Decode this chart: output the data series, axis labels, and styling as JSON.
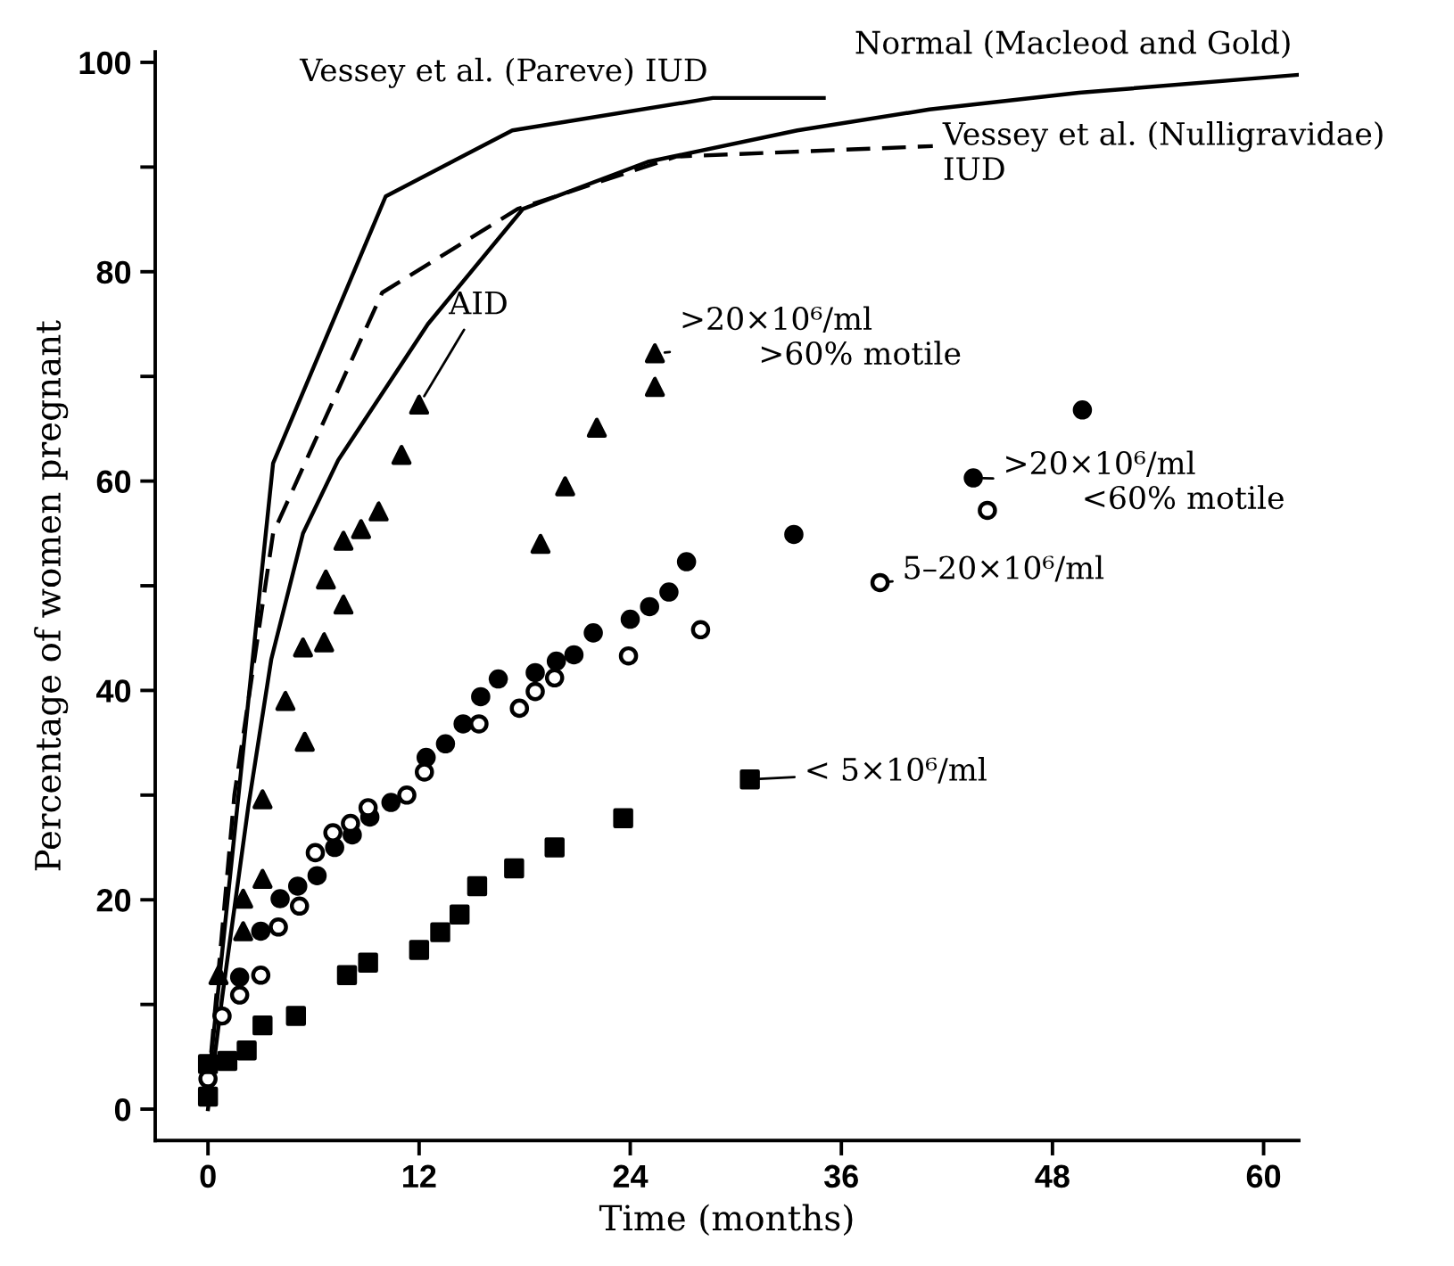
{
  "chart_data": {
    "type": "scatter",
    "xlabel": "Time (months)",
    "ylabel": "Percentage of women pregnant",
    "xlim": [
      -3,
      62
    ],
    "ylim": [
      -3,
      101
    ],
    "xticks": [
      0,
      12,
      24,
      36,
      48,
      60
    ],
    "yticks": [
      0,
      {
        "value": 10,
        "label": null
      },
      20,
      {
        "value": 30,
        "label": null
      },
      40,
      {
        "value": 50,
        "label": null
      },
      60,
      {
        "value": 70,
        "label": null
      },
      80,
      {
        "value": 90,
        "label": null
      },
      100
    ],
    "grid": false,
    "legend": false,
    "series": [
      {
        "type": "line",
        "color": "#000000",
        "line_style": "solid",
        "marker": "none",
        "x": [
          0,
          3.7,
          10.1,
          17.3,
          28.7,
          35.0
        ],
        "values": [
          2,
          61.7,
          87.2,
          93.5,
          96.6,
          96.6
        ]
      },
      {
        "type": "line",
        "color": "#000000",
        "line_style": "solid",
        "marker": "none",
        "x": [
          0,
          0.8,
          2.3,
          3.6,
          5.4,
          7.4,
          12.5,
          17.9,
          25,
          33.5,
          41,
          49.5,
          61.9
        ],
        "values": [
          0,
          10.6,
          29,
          43,
          55,
          62,
          75,
          86,
          90.5,
          93.5,
          95.5,
          97.1,
          98.8
        ]
      },
      {
        "type": "line",
        "color": "#000000",
        "line_style": "dashed",
        "marker": "none",
        "x": [
          0,
          1.5,
          3.7,
          9.9,
          17.6,
          26.6,
          41.2
        ],
        "values": [
          2,
          30,
          55,
          78,
          86,
          91,
          92
        ]
      },
      {
        "color": "#000000",
        "marker": "triangle",
        "x": [
          12.0,
          11.0,
          9.7,
          8.7,
          7.7,
          6.7,
          25.4,
          25.4,
          22.1,
          20.3,
          18.9,
          7.7,
          5.4,
          6.6,
          4.4,
          5.5,
          3.1,
          3.1,
          2.0,
          2.0,
          0.6
        ],
        "values": [
          67.3,
          62.5,
          57.1,
          55.4,
          54.3,
          50.6,
          72.2,
          69.0,
          65.1,
          59.5,
          54.0,
          48.2,
          44.1,
          44.6,
          39.0,
          35.1,
          29.6,
          22.0,
          20.1,
          17.0,
          12.8
        ]
      },
      {
        "color": "#000000",
        "marker": "circle",
        "x": [
          27.2,
          26.2,
          25.1,
          24.0,
          21.9,
          20.8,
          19.8,
          18.6,
          16.5,
          15.5,
          14.5,
          13.5,
          12.4,
          10.4,
          9.2,
          8.2,
          7.2,
          6.2,
          5.1,
          4.1,
          3.0,
          1.8,
          33.3,
          43.5,
          49.7
        ],
        "values": [
          52.3,
          49.4,
          48.0,
          46.8,
          45.5,
          43.4,
          42.8,
          41.7,
          41.1,
          39.4,
          36.8,
          34.9,
          33.6,
          29.3,
          27.9,
          26.2,
          25.0,
          22.3,
          21.3,
          20.1,
          17.0,
          12.6,
          54.9,
          60.3,
          66.8
        ]
      },
      {
        "color": "#ffffff",
        "marker": "circle",
        "x": [
          28.0,
          23.9,
          19.7,
          18.6,
          17.7,
          15.4,
          12.3,
          11.3,
          9.1,
          8.1,
          7.1,
          6.1,
          5.2,
          4.0,
          3.0,
          1.8,
          0.8,
          0,
          38.2,
          44.3
        ],
        "values": [
          45.8,
          43.3,
          41.2,
          39.9,
          38.3,
          36.8,
          32.2,
          30.0,
          28.8,
          27.3,
          26.4,
          24.5,
          19.4,
          17.4,
          12.8,
          10.9,
          8.9,
          2.9,
          50.3,
          57.2
        ]
      },
      {
        "color": "#000000",
        "marker": "square",
        "x": [
          30.8,
          23.6,
          19.7,
          17.4,
          15.3,
          14.3,
          13.2,
          12.0,
          9.1,
          7.9,
          5.0,
          3.1,
          2.2,
          1.1,
          0,
          0
        ],
        "values": [
          31.5,
          27.8,
          25.0,
          23.0,
          21.3,
          18.6,
          16.9,
          15.2,
          14.0,
          12.8,
          8.9,
          8.0,
          5.6,
          4.6,
          4.3,
          1.2
        ]
      }
    ],
    "annotations": [
      {
        "text": "Vessey et al. (Pareve) IUD",
        "x": 28.7,
        "y": 96.6
      },
      {
        "text": "Normal (Macleod and Gold)",
        "x": 61.9,
        "y": 98.8
      },
      {
        "text": "Vessey et al. (Nulligravidae)\nIUD",
        "x": 41.2,
        "y": 92.0
      },
      {
        "text": "AID",
        "x": 12.0,
        "y": 67.3
      },
      {
        "text": ">20×10⁶/ml\n        >60% motile",
        "x": 25.4,
        "y": 72.2
      },
      {
        "text": ">20×10⁶/ml\n        <60% motile",
        "x": 43.5,
        "y": 60.3
      },
      {
        "text": "5–20×10⁶/ml",
        "x": 38.2,
        "y": 50.3
      },
      {
        "text": "< 5×10⁶/ml",
        "x": 30.8,
        "y": 31.5
      }
    ]
  }
}
